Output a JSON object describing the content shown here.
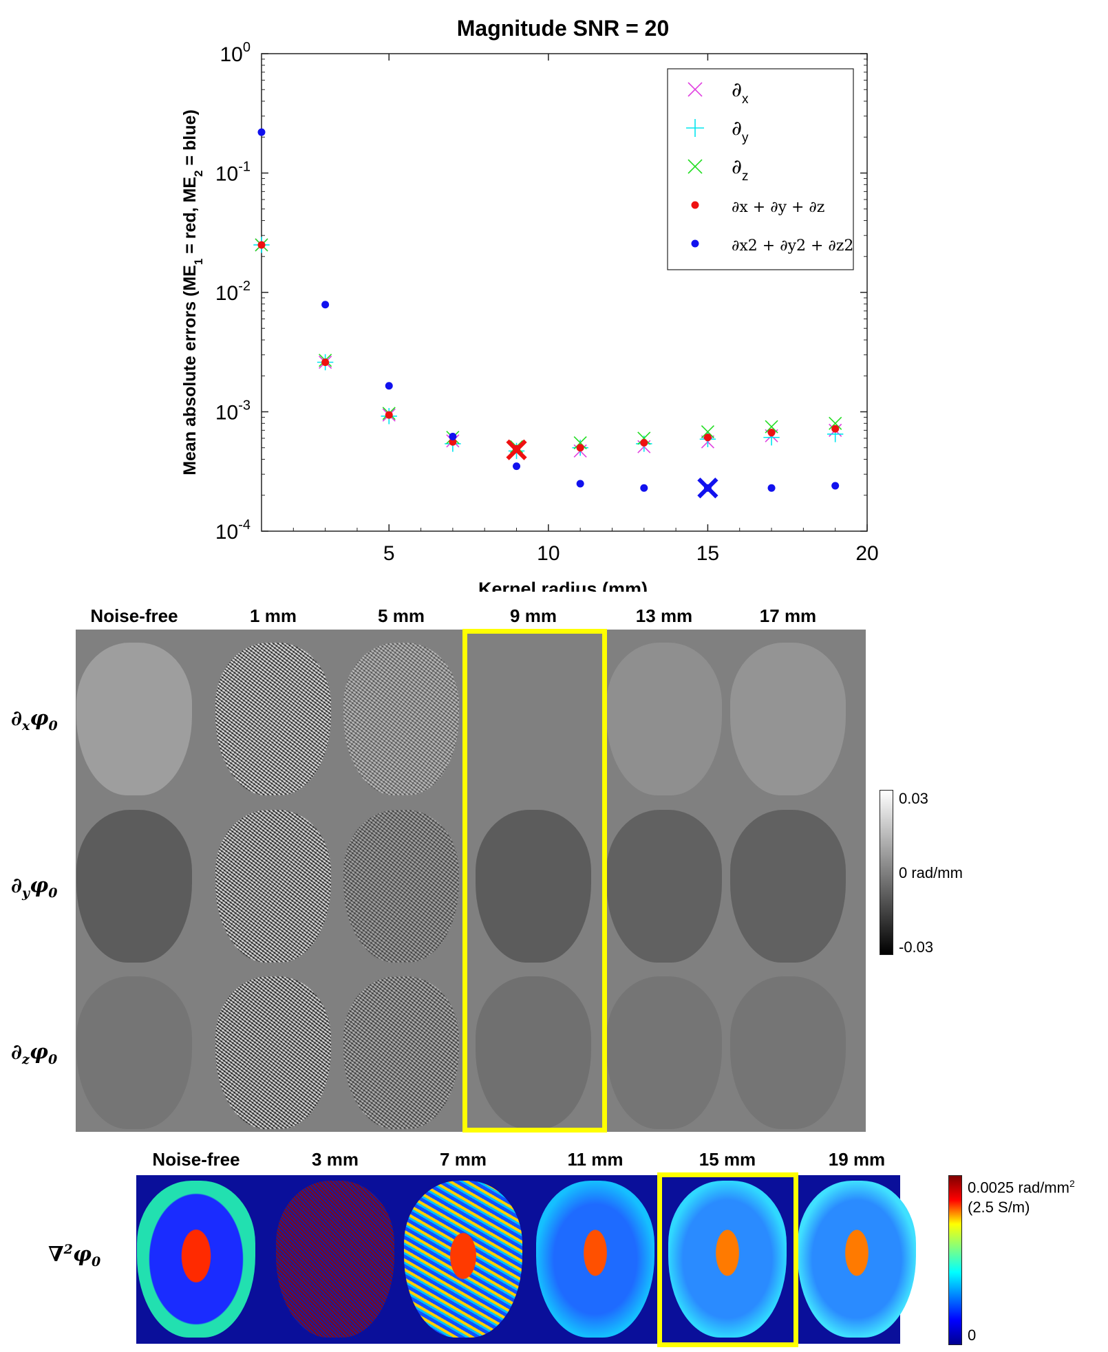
{
  "chart_data": {
    "type": "scatter",
    "title": "Magnitude SNR = 20",
    "xlabel": "Kernel radius (mm)",
    "ylabel": "Mean absolute errors (ME1 = red, ME2 = blue)",
    "yscale": "log",
    "xlim": [
      1,
      20
    ],
    "ylim": [
      0.0001,
      1
    ],
    "x_ticks": [
      5,
      10,
      15,
      20
    ],
    "y_ticks": [
      {
        "value": 1,
        "label": "10",
        "exp": "0"
      },
      {
        "value": 0.1,
        "label": "10",
        "exp": "-1"
      },
      {
        "value": 0.01,
        "label": "10",
        "exp": "-2"
      },
      {
        "value": 0.001,
        "label": "10",
        "exp": "-3"
      },
      {
        "value": 0.0001,
        "label": "10",
        "exp": "-4"
      }
    ],
    "legend_position": "top-right",
    "x": [
      1,
      3,
      5,
      7,
      9,
      11,
      13,
      15,
      17,
      19
    ],
    "series": [
      {
        "name": "∂x",
        "marker": "x",
        "color": "#e040e0",
        "values": [
          0.025,
          0.0026,
          0.00094,
          0.00057,
          0.00049,
          0.00047,
          0.00051,
          0.00056,
          0.00063,
          0.0007
        ]
      },
      {
        "name": "∂y",
        "marker": "+",
        "color": "#00e5ee",
        "values": [
          0.025,
          0.0026,
          0.00092,
          0.00054,
          0.00047,
          0.0005,
          0.00054,
          0.00059,
          0.00061,
          0.00065
        ]
      },
      {
        "name": "∂z",
        "marker": "x",
        "color": "#22dd22",
        "values": [
          0.025,
          0.0027,
          0.00097,
          0.00061,
          0.00051,
          0.00055,
          0.0006,
          0.00068,
          0.00075,
          0.0008
        ]
      },
      {
        "name": "∂x + ∂y + ∂z",
        "marker": "dot",
        "color": "#ee1111",
        "values": [
          0.025,
          0.0026,
          0.00094,
          0.00056,
          0.00049,
          0.0005,
          0.00055,
          0.00061,
          0.00067,
          0.00072
        ]
      },
      {
        "name": "∂x2 + ∂y2 + ∂z2",
        "marker": "dot",
        "color": "#1111ee",
        "values": [
          0.22,
          0.0079,
          0.00165,
          0.00062,
          0.00035,
          0.00025,
          0.00023,
          0.00023,
          0.00023,
          0.00024
        ]
      }
    ],
    "highlights": [
      {
        "x": 9,
        "y": 0.00048,
        "color": "#ee1111"
      },
      {
        "x": 15,
        "y": 0.00023,
        "color": "#1111ee"
      }
    ]
  },
  "legend": {
    "items": [
      {
        "sym": "∂",
        "sub": "x",
        "marker": "x",
        "color": "#e040e0"
      },
      {
        "sym": "∂",
        "sub": "y",
        "marker": "+",
        "color": "#00e5ee"
      },
      {
        "sym": "∂",
        "sub": "z",
        "marker": "x",
        "color": "#22dd22"
      },
      {
        "text": "∂x + ∂y + ∂z",
        "marker": "dot",
        "color": "#ee1111"
      },
      {
        "text": "∂x2 + ∂y2 + ∂z2",
        "marker": "dot",
        "color": "#1111ee"
      }
    ]
  },
  "grid_panel": {
    "columns": [
      "Noise-free",
      "1 mm",
      "5 mm",
      "9 mm",
      "13 mm",
      "17 mm"
    ],
    "rows": [
      {
        "label": "∂",
        "sub": "x",
        "tail": "φ",
        "tail_sub": "0"
      },
      {
        "label": "∂",
        "sub": "y",
        "tail": "φ",
        "tail_sub": "0"
      },
      {
        "label": "∂",
        "sub": "z",
        "tail": "φ",
        "tail_sub": "0"
      }
    ],
    "highlight_column": "9 mm",
    "colorbar": {
      "max": "0.03",
      "mid": "0 rad/mm",
      "min": "-0.03"
    }
  },
  "laplacian_panel": {
    "columns": [
      "Noise-free",
      "3 mm",
      "7 mm",
      "11 mm",
      "15 mm",
      "19 mm"
    ],
    "row_label": {
      "label": "∇",
      "sup": "2",
      "tail": "φ",
      "tail_sub": "0"
    },
    "highlight_column": "15 mm",
    "colorbar": {
      "max": "0.0025 rad/mm",
      "max_sup": "2",
      "max_note": "(2.5 S/m)",
      "min": "0"
    }
  }
}
